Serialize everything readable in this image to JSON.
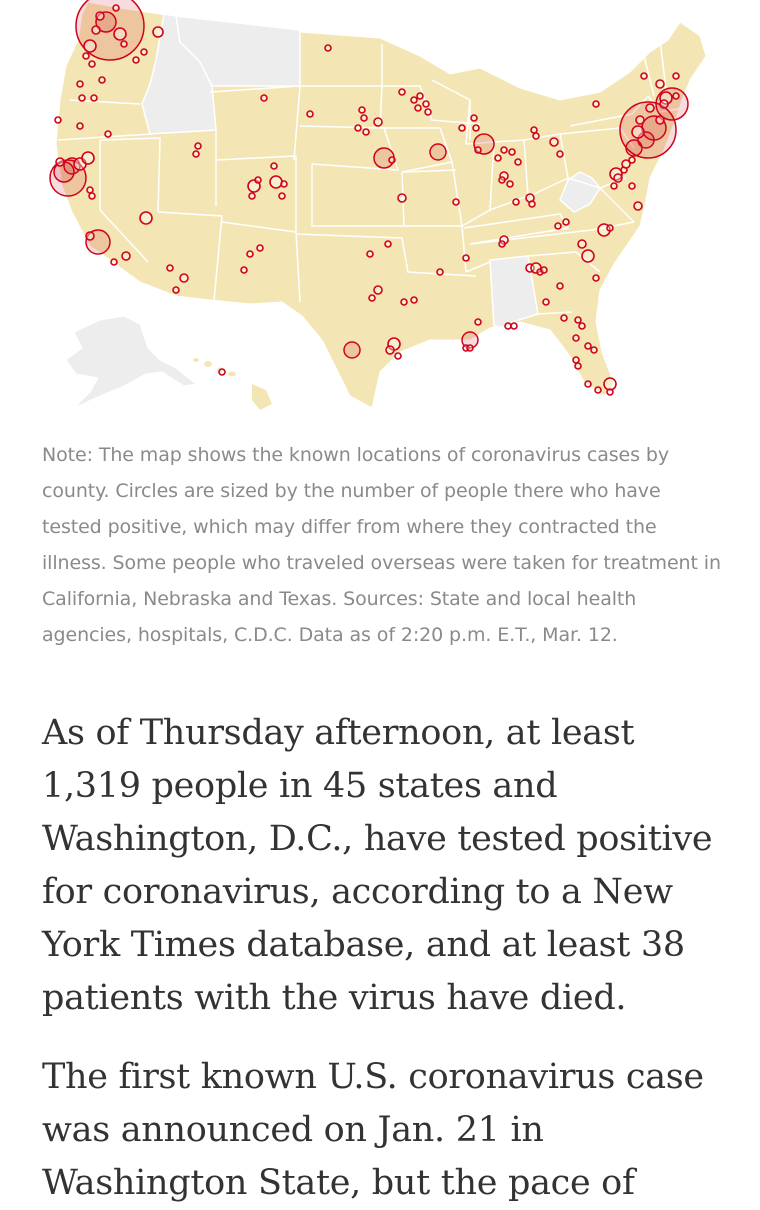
{
  "note": "Note: The map shows the known locations of coronavirus cases by county. Circles are sized by the number of people there who have tested positive, which may differ from where they contracted the illness. Some people who traveled overseas were taken for treatment in California, Nebraska and Texas. Sources: State and local health agencies, hospitals, C.D.C. Data as of 2:20 p.m. E.T., Mar. 12.",
  "article": {
    "paragraph_1": "As of Thursday afternoon, at least 1,319 people in 45 states and Washington, D.C., have tested positive for coronavirus, according to a New York Times database, and at least 38 patients with the virus have died.",
    "paragraph_2": "The first known U.S. coronavirus case was announced on Jan. 21 in Washington State, but the pace of"
  },
  "map": {
    "land_color": "#f3e6b4",
    "no_case_state_color": "#ededed",
    "border_color": "#ffffff",
    "circle_color": "#d0021b",
    "states_without_cases": [
      "Idaho",
      "Montana",
      "Alabama",
      "West Virginia",
      "Alaska"
    ]
  }
}
